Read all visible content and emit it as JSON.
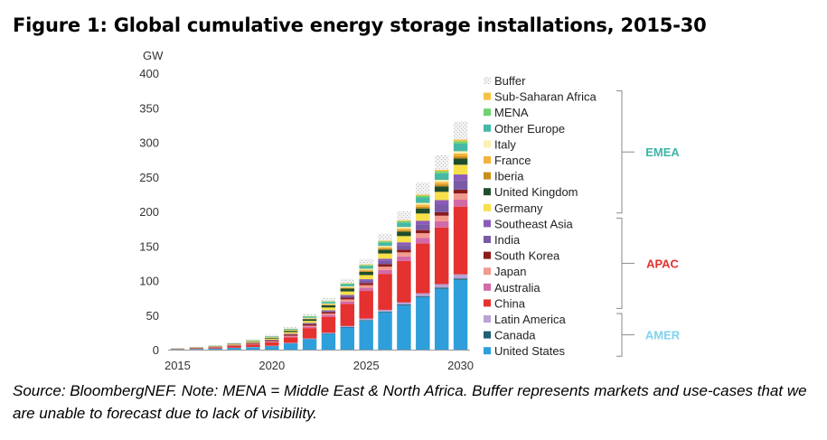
{
  "title": "Figure 1: Global cumulative energy storage installations, 2015-30",
  "source_note": "Source: BloombergNEF. Note: MENA = Middle East & North Africa. Buffer represents markets and use-cases that we are unable to forecast due to lack of visibility.",
  "colors": {
    "United States": "#2E9FDB",
    "Canada": "#1F5F75",
    "Latin America": "#B9A2D6",
    "China": "#E5312F",
    "Australia": "#D36AA8",
    "Japan": "#F29A8E",
    "South Korea": "#8B1A1A",
    "India": "#7A5AA6",
    "Southeast Asia": "#8A5BB8",
    "Germany": "#F7E04A",
    "United Kingdom": "#1F4D2B",
    "Iberia": "#C8901A",
    "France": "#F3B33D",
    "Italy": "#FBF1B0",
    "Other Europe": "#45B9A5",
    "MENA": "#6FD36F",
    "Sub-Saharan Africa": "#F5C242",
    "Buffer": "#E2E2E2",
    "EMEA_label": "#3BB6A8",
    "APAC_label": "#E5312F",
    "AMER_label": "#7FD3EF"
  },
  "chart_data": {
    "type": "bar",
    "stacked": true,
    "title": "Figure 1: Global cumulative energy storage installations, 2015-30",
    "ylabel": "GW",
    "ylim": [
      0,
      400
    ],
    "yticks": [
      0,
      50,
      100,
      150,
      200,
      250,
      300,
      350,
      400
    ],
    "categories": [
      "2015",
      "2016",
      "2017",
      "2018",
      "2019",
      "2020",
      "2021",
      "2022",
      "2023",
      "2024",
      "2025",
      "2026",
      "2027",
      "2028",
      "2029",
      "2030"
    ],
    "xtick_labels": [
      {
        "category": "2015",
        "label": "2015"
      },
      {
        "category": "2020",
        "label": "2020"
      },
      {
        "category": "2025",
        "label": "2025"
      },
      {
        "category": "2030",
        "label": "2030"
      }
    ],
    "series": [
      {
        "name": "United States",
        "values": [
          0.5,
          1,
          1.5,
          2.5,
          3.5,
          5,
          9,
          15,
          23,
          32,
          42,
          54,
          64,
          76,
          88,
          101
        ]
      },
      {
        "name": "Canada",
        "values": [
          0.05,
          0.05,
          0.1,
          0.1,
          0.1,
          0.2,
          0.3,
          0.4,
          0.5,
          0.7,
          0.9,
          1.1,
          1.3,
          1.5,
          1.8,
          2
        ]
      },
      {
        "name": "Latin America",
        "values": [
          0.05,
          0.1,
          0.1,
          0.2,
          0.3,
          0.4,
          0.6,
          0.8,
          1,
          1.5,
          2,
          2.5,
          3,
          4,
          5,
          6
        ]
      },
      {
        "name": "China",
        "values": [
          0.5,
          1,
          1.5,
          2.5,
          3.5,
          5,
          8,
          15,
          23,
          32,
          40,
          52,
          60,
          72,
          82,
          98
        ]
      },
      {
        "name": "Australia",
        "values": [
          0.1,
          0.1,
          0.2,
          0.3,
          0.5,
          0.8,
          1.2,
          2,
          2.7,
          3.5,
          4.5,
          5.5,
          6.5,
          8,
          9,
          10
        ]
      },
      {
        "name": "Japan",
        "values": [
          0.1,
          0.2,
          0.3,
          0.4,
          0.5,
          0.7,
          1,
          1.5,
          2,
          3,
          4,
          5,
          6,
          7,
          8,
          9
        ]
      },
      {
        "name": "South Korea",
        "values": [
          0.1,
          0.2,
          0.4,
          0.8,
          1.2,
          1.5,
          1.8,
          2,
          2.2,
          2.5,
          3,
          3.5,
          4,
          4.5,
          5,
          5.5
        ]
      },
      {
        "name": "India",
        "values": [
          0.05,
          0.05,
          0.1,
          0.2,
          0.3,
          0.5,
          0.8,
          1.2,
          1.6,
          2.5,
          3.5,
          5,
          6.5,
          8.5,
          11,
          14
        ]
      },
      {
        "name": "Southeast Asia",
        "values": [
          0.05,
          0.05,
          0.1,
          0.1,
          0.2,
          0.3,
          0.5,
          0.7,
          1,
          1.5,
          2,
          3,
          4,
          5,
          6.5,
          8
        ]
      },
      {
        "name": "Germany",
        "values": [
          0.2,
          0.3,
          0.5,
          0.8,
          1.2,
          1.6,
          2.2,
          3,
          4,
          5,
          6,
          7.5,
          9,
          10.5,
          12,
          14
        ]
      },
      {
        "name": "United Kingdom",
        "values": [
          0.1,
          0.2,
          0.3,
          0.5,
          0.8,
          1.2,
          1.8,
          2.5,
          3.2,
          4,
          4.8,
          5.6,
          6.5,
          7.3,
          8,
          9
        ]
      },
      {
        "name": "Iberia",
        "values": [
          0.05,
          0.05,
          0.1,
          0.1,
          0.2,
          0.2,
          0.3,
          0.5,
          0.7,
          1,
          1.3,
          1.6,
          2,
          2.4,
          2.8,
          3.2
        ]
      },
      {
        "name": "France",
        "values": [
          0.05,
          0.1,
          0.1,
          0.2,
          0.3,
          0.4,
          0.6,
          0.8,
          1,
          1.3,
          1.6,
          2,
          2.5,
          3,
          3.5,
          4
        ]
      },
      {
        "name": "Italy",
        "values": [
          0.05,
          0.1,
          0.1,
          0.2,
          0.3,
          0.4,
          0.5,
          0.7,
          0.9,
          1.2,
          1.5,
          1.8,
          2.2,
          2.6,
          3,
          3.4
        ]
      },
      {
        "name": "Other Europe",
        "values": [
          0.1,
          0.2,
          0.3,
          0.4,
          0.6,
          0.8,
          1.2,
          1.6,
          2.2,
          3,
          4,
          5,
          6.5,
          8,
          9.5,
          11
        ]
      },
      {
        "name": "MENA",
        "values": [
          0.05,
          0.05,
          0.1,
          0.1,
          0.2,
          0.3,
          0.4,
          0.6,
          0.8,
          1,
          1.3,
          1.6,
          2,
          2.5,
          3,
          3.5
        ]
      },
      {
        "name": "Sub-Saharan Africa",
        "values": [
          0.05,
          0.05,
          0.1,
          0.1,
          0.1,
          0.2,
          0.3,
          0.4,
          0.5,
          0.7,
          0.9,
          1.1,
          1.4,
          1.7,
          2,
          2.4
        ]
      },
      {
        "name": "Buffer",
        "values": [
          0.3,
          0.5,
          0.7,
          1,
          1.5,
          2,
          2.5,
          3.5,
          4.5,
          6,
          8,
          10,
          13,
          17,
          21,
          26
        ]
      }
    ],
    "legend": {
      "placement": "right",
      "order": [
        "Buffer",
        "Sub-Saharan Africa",
        "MENA",
        "Other Europe",
        "Italy",
        "France",
        "Iberia",
        "United Kingdom",
        "Germany",
        "Southeast Asia",
        "India",
        "South Korea",
        "Japan",
        "Australia",
        "China",
        "Latin America",
        "Canada",
        "United States"
      ],
      "groups": [
        {
          "label": "EMEA",
          "from": "Sub-Saharan Africa",
          "to": "Germany"
        },
        {
          "label": "APAC",
          "from": "Southeast Asia",
          "to": "China"
        },
        {
          "label": "AMER",
          "from": "Latin America",
          "to": "United States"
        }
      ]
    },
    "grid": false
  }
}
